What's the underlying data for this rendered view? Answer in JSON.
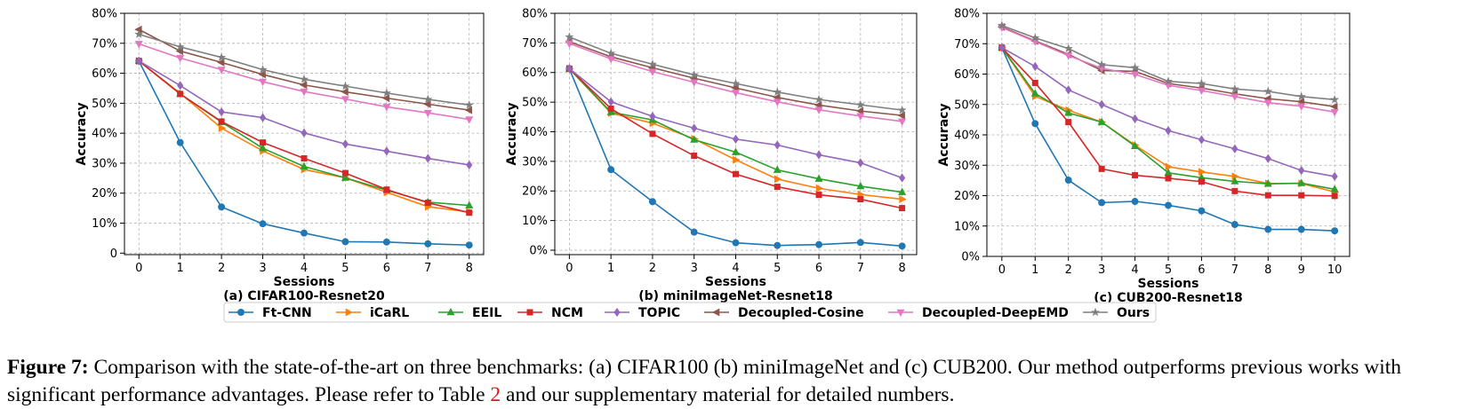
{
  "caption": {
    "label": "Figure 7:",
    "text_before_ref": "Comparison with the state-of-the-art on three benchmarks: (a) CIFAR100 (b) miniImageNet and (c) CUB200. Our method outperforms previous works with significant performance advantages. Please refer to Table",
    "ref": "2",
    "text_after_ref": "and our supplementary material for detailed numbers."
  },
  "legend": [
    {
      "name": "Ft-CNN",
      "color": "#1f77b4",
      "marker": "circle"
    },
    {
      "name": "iCaRL",
      "color": "#ff7f0e",
      "marker": "triangle-right"
    },
    {
      "name": "EEIL",
      "color": "#2ca02c",
      "marker": "triangle-up"
    },
    {
      "name": "NCM",
      "color": "#d62728",
      "marker": "square"
    },
    {
      "name": "TOPIC",
      "color": "#9467bd",
      "marker": "diamond"
    },
    {
      "name": "Decoupled-Cosine",
      "color": "#8c564b",
      "marker": "triangle-left"
    },
    {
      "name": "Decoupled-DeepEMD",
      "color": "#e377c2",
      "marker": "triangle-down"
    },
    {
      "name": "Ours",
      "color": "#7f7f7f",
      "marker": "star"
    }
  ],
  "chart_data": [
    {
      "type": "line",
      "subcaption": "(a) CIFAR100-Resnet20",
      "xlabel": "Sessions",
      "ylabel": "Accuracy",
      "x": [
        0,
        1,
        2,
        3,
        4,
        5,
        6,
        7,
        8
      ],
      "xlim": [
        -0.35,
        8.35
      ],
      "ylim": [
        -0.5,
        80
      ],
      "yticks": [
        0,
        10,
        20,
        30,
        40,
        50,
        60,
        70,
        80
      ],
      "ytick_labels": [
        "0",
        "10%",
        "20%",
        "30%",
        "40%",
        "50%",
        "60%",
        "70%",
        "80%"
      ],
      "grid": true,
      "series": [
        {
          "name": "Ft-CNN",
          "values": [
            64.1,
            36.9,
            15.4,
            9.8,
            6.7,
            3.8,
            3.7,
            3.1,
            2.7
          ]
        },
        {
          "name": "iCaRL",
          "values": [
            64.1,
            53.3,
            41.7,
            34.1,
            27.9,
            25.1,
            20.3,
            15.5,
            13.7
          ]
        },
        {
          "name": "EEIL",
          "values": [
            64.1,
            53.1,
            43.7,
            35.0,
            28.9,
            25.1,
            21.0,
            17.0,
            15.9
          ]
        },
        {
          "name": "NCM",
          "values": [
            64.1,
            53.1,
            43.9,
            36.9,
            31.6,
            26.7,
            21.2,
            16.8,
            13.5
          ]
        },
        {
          "name": "TOPIC",
          "values": [
            64.1,
            55.9,
            47.1,
            45.2,
            40.1,
            36.4,
            34.0,
            31.6,
            29.4
          ]
        },
        {
          "name": "Decoupled-Cosine",
          "values": [
            74.6,
            67.4,
            63.6,
            59.6,
            56.1,
            53.8,
            51.7,
            49.7,
            47.7
          ]
        },
        {
          "name": "Decoupled-DeepEMD",
          "values": [
            69.8,
            65.1,
            61.2,
            57.2,
            53.9,
            51.4,
            48.8,
            46.8,
            44.6
          ]
        },
        {
          "name": "Ours",
          "values": [
            73.0,
            68.8,
            65.3,
            61.2,
            58.0,
            55.7,
            53.4,
            51.3,
            49.4
          ]
        }
      ]
    },
    {
      "type": "line",
      "subcaption": "(b) miniImageNet-Resnet18",
      "xlabel": "Sessions",
      "ylabel": "Accuracy",
      "x": [
        0,
        1,
        2,
        3,
        4,
        5,
        6,
        7,
        8
      ],
      "xlim": [
        -0.35,
        8.35
      ],
      "ylim": [
        -1.5,
        80
      ],
      "yticks": [
        0,
        10,
        20,
        30,
        40,
        50,
        60,
        70,
        80
      ],
      "ytick_labels": [
        "0%",
        "10%",
        "20%",
        "30%",
        "40%",
        "50%",
        "60%",
        "70%",
        "80%"
      ],
      "grid": true,
      "series": [
        {
          "name": "Ft-CNN",
          "values": [
            61.3,
            27.2,
            16.4,
            6.1,
            2.5,
            1.6,
            1.9,
            2.6,
            1.4
          ]
        },
        {
          "name": "iCaRL",
          "values": [
            61.3,
            46.3,
            42.9,
            37.6,
            30.5,
            24.0,
            20.9,
            18.8,
            17.2
          ]
        },
        {
          "name": "EEIL",
          "values": [
            61.3,
            46.6,
            44.0,
            37.3,
            33.1,
            27.1,
            24.1,
            21.6,
            19.6
          ]
        },
        {
          "name": "NCM",
          "values": [
            61.3,
            47.8,
            39.3,
            31.9,
            25.7,
            21.4,
            18.7,
            17.2,
            14.2
          ]
        },
        {
          "name": "TOPIC",
          "values": [
            61.3,
            50.1,
            45.2,
            41.2,
            37.5,
            35.5,
            32.2,
            29.5,
            24.4
          ]
        },
        {
          "name": "Decoupled-Cosine",
          "values": [
            70.4,
            65.3,
            61.6,
            58.1,
            54.8,
            51.6,
            49.0,
            47.0,
            45.5
          ]
        },
        {
          "name": "Decoupled-DeepEMD",
          "values": [
            69.8,
            64.6,
            60.3,
            56.7,
            53.2,
            50.1,
            47.4,
            45.3,
            43.5
          ]
        },
        {
          "name": "Ours",
          "values": [
            72.0,
            66.5,
            62.8,
            59.2,
            56.3,
            53.4,
            50.9,
            49.1,
            47.3
          ]
        }
      ]
    },
    {
      "type": "line",
      "subcaption": "(c) CUB200-Resnet18",
      "xlabel": "Sessions",
      "ylabel": "Accuracy",
      "x": [
        0,
        1,
        2,
        3,
        4,
        5,
        6,
        7,
        8,
        9,
        10
      ],
      "xlim": [
        -0.45,
        10.45
      ],
      "ylim": [
        0,
        80
      ],
      "yticks": [
        0,
        10,
        20,
        30,
        40,
        50,
        60,
        70,
        80
      ],
      "ytick_labels": [
        "0%",
        "10%",
        "20%",
        "30%",
        "40%",
        "50%",
        "60%",
        "70%",
        "80%"
      ],
      "grid": true,
      "series": [
        {
          "name": "Ft-CNN",
          "values": [
            68.7,
            43.7,
            25.1,
            17.7,
            18.1,
            16.8,
            15.0,
            10.5,
            8.9,
            8.9,
            8.4
          ]
        },
        {
          "name": "iCaRL",
          "values": [
            68.7,
            52.7,
            48.1,
            44.2,
            36.6,
            29.5,
            27.8,
            26.3,
            24.0,
            24.0,
            21.2
          ]
        },
        {
          "name": "EEIL",
          "values": [
            68.7,
            53.6,
            47.2,
            44.2,
            36.3,
            27.5,
            25.9,
            24.7,
            23.9,
            24.1,
            22.1
          ]
        },
        {
          "name": "NCM",
          "values": [
            68.7,
            57.1,
            44.2,
            28.8,
            26.7,
            25.7,
            24.6,
            21.5,
            20.1,
            20.1,
            19.9
          ]
        },
        {
          "name": "TOPIC",
          "values": [
            68.7,
            62.5,
            54.8,
            50.0,
            45.3,
            41.4,
            38.4,
            35.4,
            32.2,
            28.3,
            26.3
          ]
        },
        {
          "name": "Decoupled-Cosine",
          "values": [
            75.5,
            70.9,
            66.5,
            61.2,
            60.9,
            56.9,
            55.4,
            53.5,
            51.9,
            50.9,
            49.3
          ]
        },
        {
          "name": "Decoupled-DeepEMD",
          "values": [
            75.3,
            70.7,
            66.1,
            61.9,
            59.9,
            56.3,
            54.6,
            52.6,
            50.6,
            49.4,
            47.5
          ]
        },
        {
          "name": "Ours",
          "values": [
            76.0,
            71.9,
            68.4,
            63.1,
            62.1,
            57.6,
            56.9,
            55.1,
            54.3,
            52.6,
            51.6
          ]
        }
      ]
    }
  ]
}
